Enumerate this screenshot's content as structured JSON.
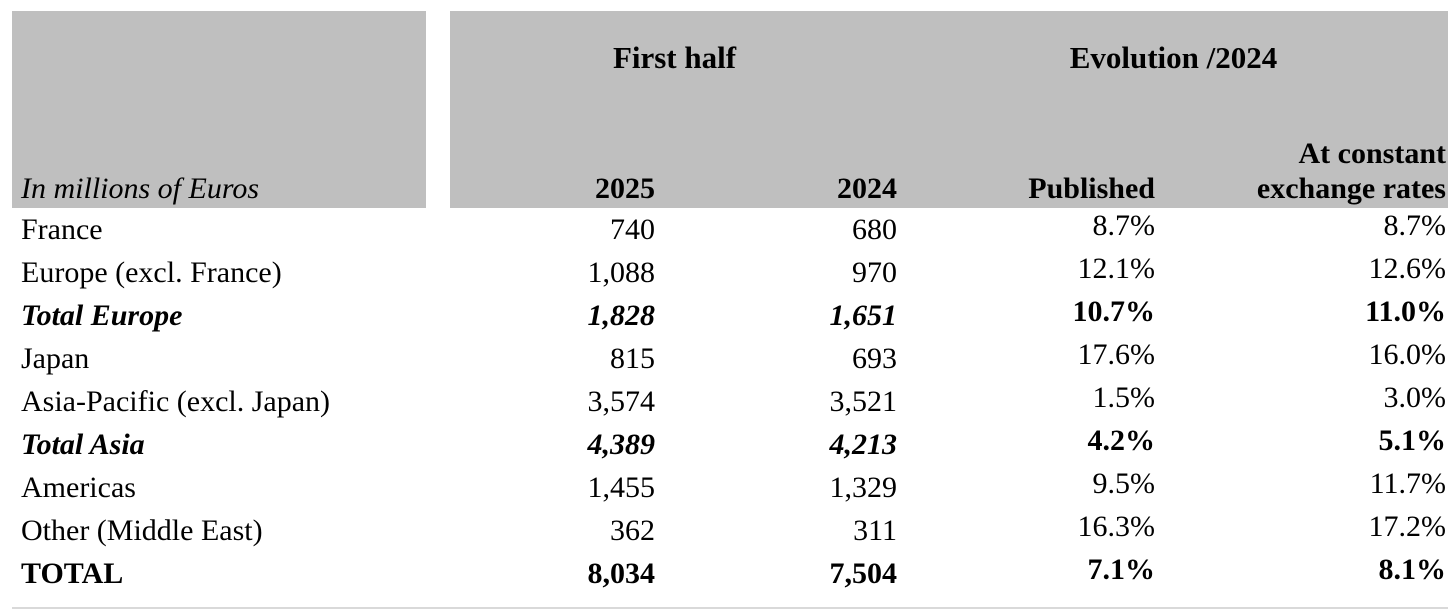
{
  "table": {
    "unit_label": "In millions of Euros",
    "group_headers": {
      "first_half": "First half",
      "evolution": "Evolution /2024"
    },
    "columns": {
      "y2025": "2025",
      "y2024": "2024",
      "published": "Published",
      "constant_line1": "At constant",
      "constant_line2": "exchange rates"
    },
    "rows": [
      {
        "label": "France",
        "v2025": "740",
        "v2024": "680",
        "published": "8.7%",
        "constant": "8.7%",
        "style": "normal"
      },
      {
        "label": "Europe (excl. France)",
        "v2025": "1,088",
        "v2024": "970",
        "published": "12.1%",
        "constant": "12.6%",
        "style": "normal"
      },
      {
        "label": "Total Europe",
        "v2025": "1,828",
        "v2024": "1,651",
        "published": "10.7%",
        "constant": "11.0%",
        "style": "subtotal"
      },
      {
        "label": "Japan",
        "v2025": "815",
        "v2024": "693",
        "published": "17.6%",
        "constant": "16.0%",
        "style": "normal"
      },
      {
        "label": "Asia-Pacific (excl. Japan)",
        "v2025": "3,574",
        "v2024": "3,521",
        "published": "1.5%",
        "constant": "3.0%",
        "style": "normal"
      },
      {
        "label": "Total Asia",
        "v2025": "4,389",
        "v2024": "4,213",
        "published": "4.2%",
        "constant": "5.1%",
        "style": "subtotal"
      },
      {
        "label": "Americas",
        "v2025": "1,455",
        "v2024": "1,329",
        "published": "9.5%",
        "constant": "11.7%",
        "style": "normal"
      },
      {
        "label": "Other (Middle East)",
        "v2025": "362",
        "v2024": "311",
        "published": "16.3%",
        "constant": "17.2%",
        "style": "normal"
      },
      {
        "label": "TOTAL",
        "v2025": "8,034",
        "v2024": "7,504",
        "published": "7.1%",
        "constant": "8.1%",
        "style": "total"
      }
    ],
    "colors": {
      "header_bg": "#bfbfbf",
      "text": "#000000",
      "bottom_rule": "#d9d9d9"
    }
  }
}
